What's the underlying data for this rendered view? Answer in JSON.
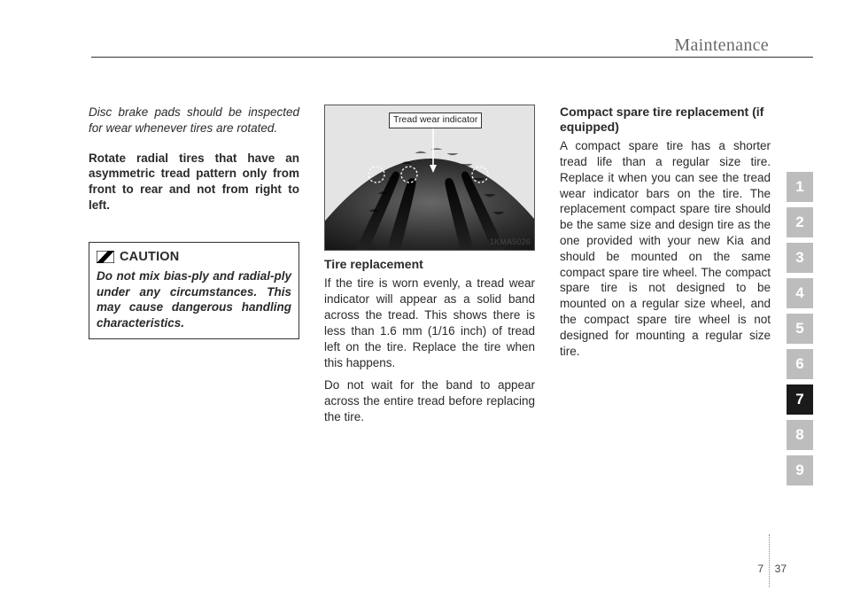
{
  "header": {
    "section": "Maintenance"
  },
  "col1": {
    "inspect_note": "Disc brake pads should be inspected for wear whenever tires are rotated.",
    "rotate_note": "Rotate radial tires that have an asymmetric tread pattern only from front to rear and not from right to left.",
    "caution": {
      "label": "CAUTION",
      "body": "Do not mix bias-ply and radial-ply under any circumstances. This may cause dangerous handling characteristics."
    }
  },
  "col2": {
    "figure": {
      "indicator_label": "Tread wear indicator",
      "code": "1KMA5026"
    },
    "heading": "Tire replacement",
    "p1": "If the tire is worn evenly, a tread wear indicator will appear as a solid band across the tread. This shows there is less than 1.6 mm (1/16 inch) of tread left on the tire. Replace the tire when this happens.",
    "p2": "Do not wait for the band to appear across the entire tread before replacing the tire."
  },
  "col3": {
    "heading": "Compact spare tire replacement (if equipped)",
    "p1": "A compact spare tire has a shorter tread life than a regular size tire. Replace it when you can see the tread wear indicator bars on the tire. The replacement compact spare tire should be the same size and design tire as the one provided with your new Kia and should be mounted on the same compact spare tire wheel. The compact spare tire is not designed to be mounted on a regular size wheel, and the compact spare tire wheel is not designed for mounting a regular size tire."
  },
  "tabs": {
    "items": [
      "1",
      "2",
      "3",
      "4",
      "5",
      "6",
      "7",
      "8",
      "9"
    ],
    "active_index": 6,
    "inactive_color": "#bdbdbd",
    "active_color": "#1a1a1a"
  },
  "footer": {
    "chapter": "7",
    "page": "37"
  },
  "figure_style": {
    "background": "#2b2b2b",
    "groove_color": "#111111",
    "highlight": "#7a7a7a",
    "arrow_color": "#ffffff"
  }
}
